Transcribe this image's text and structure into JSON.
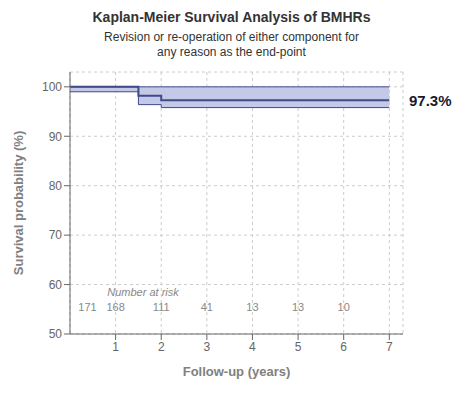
{
  "chart_data": {
    "type": "line",
    "title": "Kaplan-Meier Survival Analysis of BMHRs",
    "subtitle": "Revision or re-operation of either component for\nany reason as the end-point",
    "xlabel": "Follow-up (years)",
    "ylabel": "Survival probability (%)",
    "x": [
      0,
      1.5,
      1.5,
      2.0,
      2.0,
      7.0
    ],
    "series": [
      {
        "type": "area",
        "color": "#c5c9e8",
        "lower": [
          99.0,
          99.0,
          96.4,
          96.4,
          95.8,
          95.8
        ],
        "upper": [
          100,
          100,
          100,
          100,
          100,
          100
        ]
      },
      {
        "type": "line",
        "color": "#3f4a8a",
        "values": [
          100,
          100,
          100,
          100,
          100,
          100
        ]
      },
      {
        "type": "line",
        "color": "#3f4a8a",
        "values": [
          99.0,
          99.0,
          96.4,
          96.4,
          95.8,
          95.8
        ]
      },
      {
        "type": "line",
        "color": "#3f4a8a",
        "values": [
          100,
          100,
          98.2,
          98.2,
          97.3,
          97.3
        ]
      }
    ],
    "xlim": [
      0,
      7.3
    ],
    "ylim": [
      50,
      103
    ],
    "xticks": [
      1,
      2,
      3,
      4,
      5,
      6,
      7
    ],
    "yticks": [
      50,
      60,
      70,
      80,
      90,
      100
    ],
    "grid": true,
    "annotations": [
      {
        "text": "97.3%",
        "y": 97.3
      },
      {
        "text": "Number at risk",
        "x": 1.6,
        "y": 58.5
      },
      {
        "text": "171",
        "x": 0.05,
        "y": 55.5
      },
      {
        "text": "168",
        "x": 1,
        "y": 55.5
      },
      {
        "text": "111",
        "x": 2,
        "y": 55.5
      },
      {
        "text": "41",
        "x": 3,
        "y": 55.5
      },
      {
        "text": "13",
        "x": 4,
        "y": 55.5
      },
      {
        "text": "13",
        "x": 5,
        "y": 55.5
      },
      {
        "text": "10",
        "x": 6,
        "y": 55.5
      }
    ]
  }
}
